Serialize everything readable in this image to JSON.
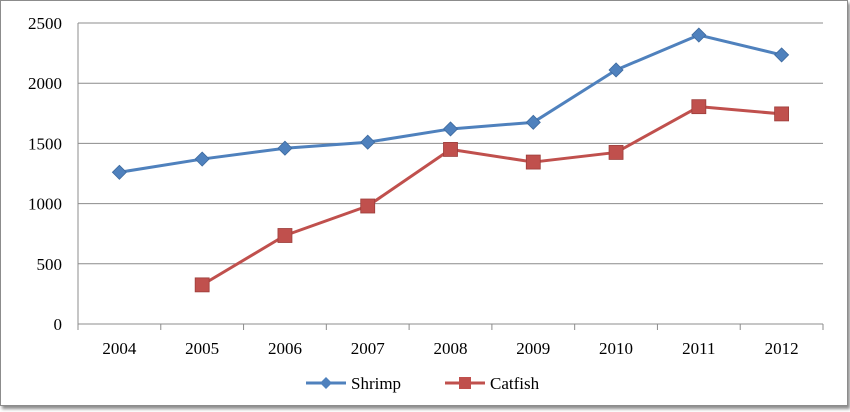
{
  "chart_data": {
    "type": "line",
    "title": "",
    "xlabel": "",
    "ylabel": "",
    "categories": [
      "2004",
      "2005",
      "2006",
      "2007",
      "2008",
      "2009",
      "2010",
      "2011",
      "2012"
    ],
    "ylim": [
      0,
      2500
    ],
    "yticks": [
      "0",
      "500",
      "1000",
      "1500",
      "2000",
      "2500"
    ],
    "grid": "horizontal",
    "legend_position": "bottom",
    "series": [
      {
        "name": "Shrimp",
        "color": "#4F81BD",
        "marker": "diamond",
        "values": [
          1260,
          1370,
          1460,
          1510,
          1620,
          1675,
          2110,
          2400,
          2235
        ]
      },
      {
        "name": "Catfish",
        "color": "#C0504D",
        "marker": "square",
        "values": [
          null,
          325,
          735,
          980,
          1450,
          1345,
          1425,
          1805,
          1745
        ]
      }
    ]
  }
}
